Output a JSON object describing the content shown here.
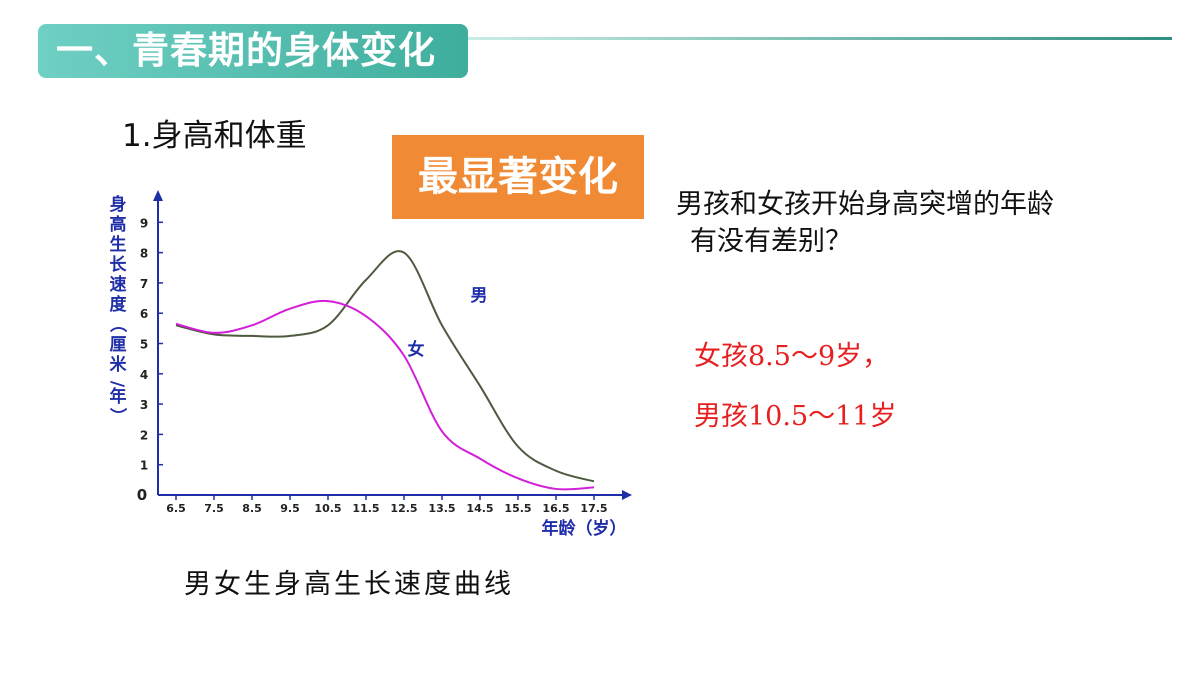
{
  "header": {
    "section_title": "一、青春期的身体变化"
  },
  "subtitle": "1.身高和体重",
  "highlight_box": {
    "label": "最显著变化",
    "color": "#f08a35"
  },
  "question": {
    "line1": "男孩和女孩开始身高突增的年龄",
    "line2": "有没有差别？"
  },
  "answers": {
    "girl": "女孩8.5～9岁，",
    "boy": "男孩10.5～11岁"
  },
  "caption": "男女生身高生长速度曲线",
  "colors": {
    "accent_teal": "#3fae9d",
    "axis_blue": "#1f2ea8",
    "answer_red": "#e81f1f"
  },
  "chart_data": {
    "type": "line",
    "ylabel": "身高生长速度（厘米/年）",
    "xlabel": "年龄（岁）",
    "x": [
      6.5,
      7.5,
      8.5,
      9.5,
      10.5,
      11.5,
      12.5,
      13.5,
      14.5,
      15.5,
      16.5,
      17.5
    ],
    "xlim": [
      6.5,
      17.5
    ],
    "ylim": [
      0,
      9
    ],
    "yticks": [
      0,
      1,
      2,
      3,
      4,
      5,
      6,
      7,
      8,
      9
    ],
    "series": [
      {
        "name": "男",
        "color": "#4d5a3f",
        "values": [
          5.6,
          5.3,
          5.25,
          5.25,
          5.6,
          7.1,
          8.0,
          5.6,
          3.6,
          1.6,
          0.8,
          0.45
        ]
      },
      {
        "name": "女",
        "color": "#d21fd8",
        "values": [
          5.65,
          5.35,
          5.6,
          6.15,
          6.4,
          5.9,
          4.6,
          2.1,
          1.2,
          0.55,
          0.2,
          0.25
        ]
      }
    ]
  }
}
